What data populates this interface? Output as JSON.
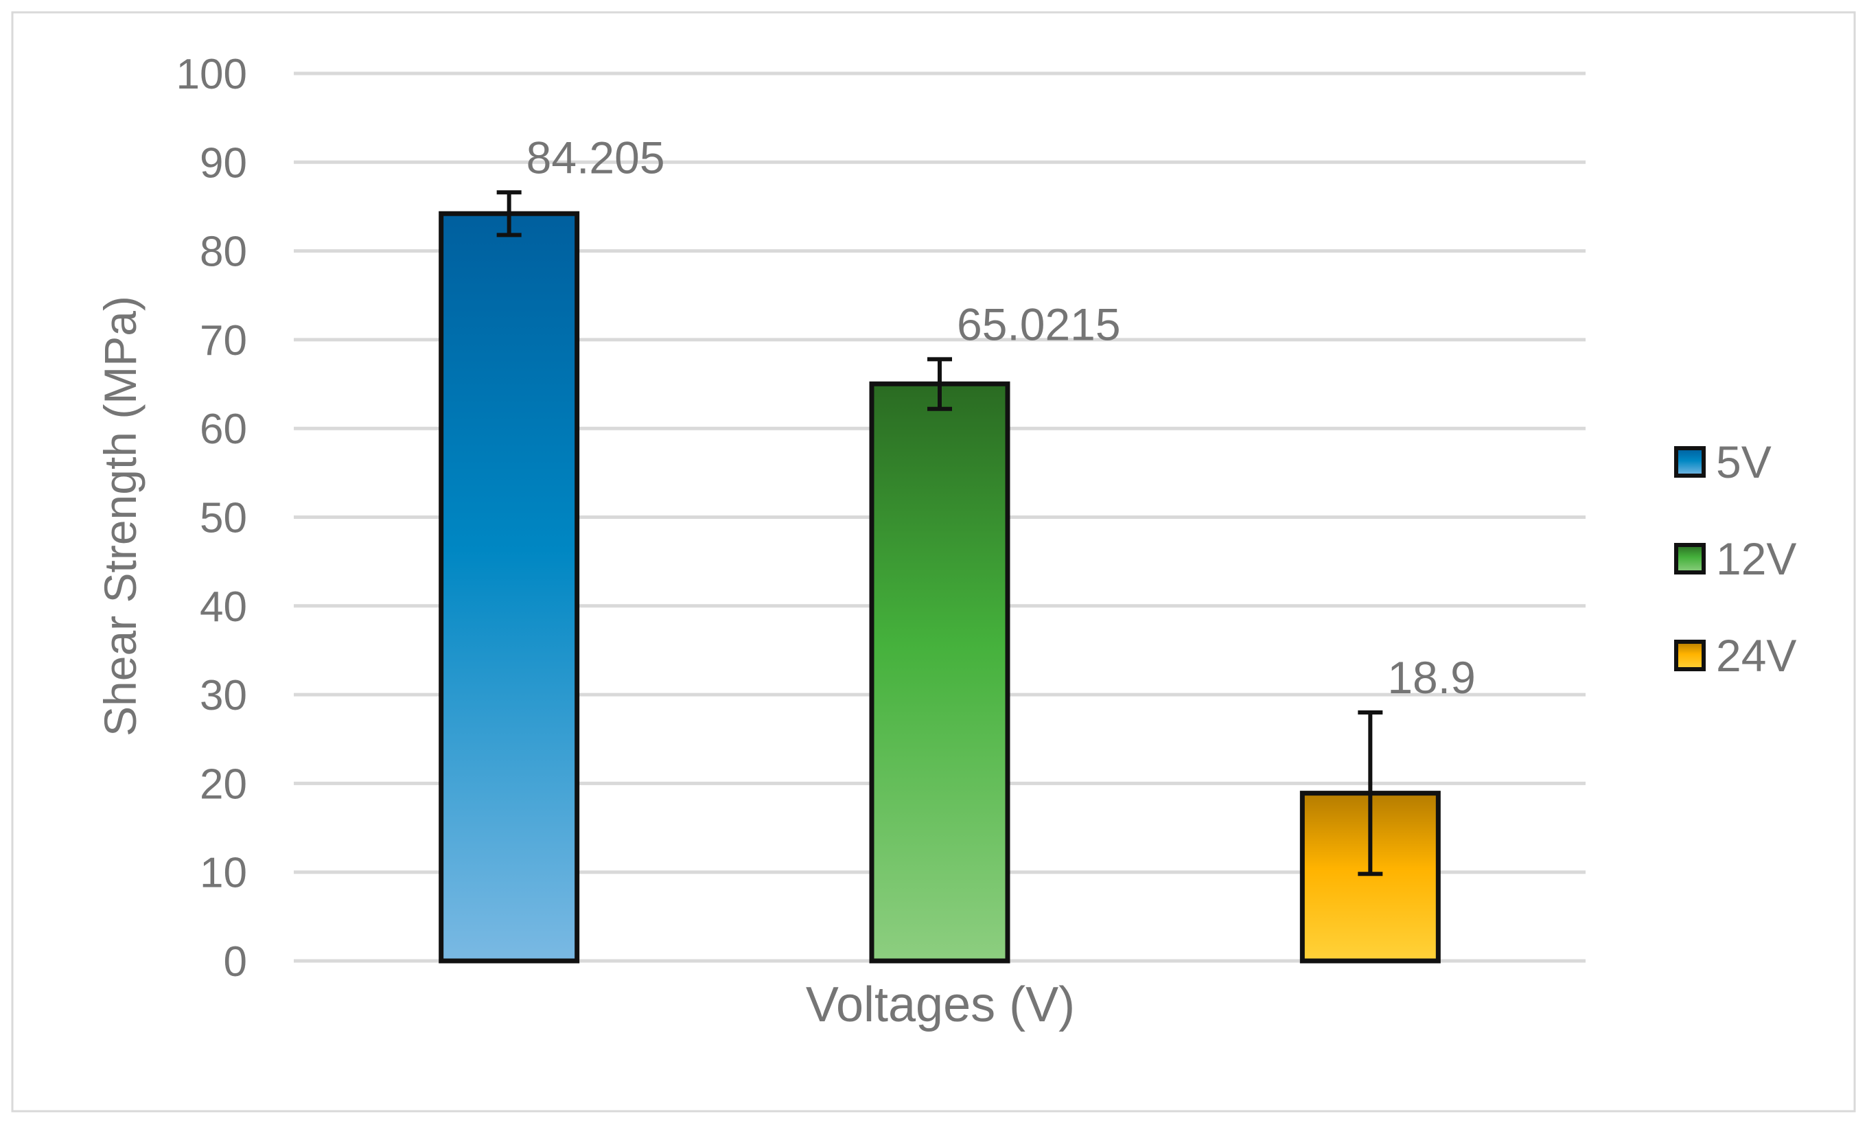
{
  "chart_data": {
    "type": "bar",
    "title": "",
    "xlabel": "Voltages (V)",
    "ylabel": "Shear Strength (MPa)",
    "ylim": [
      0,
      100
    ],
    "yticks": [
      0,
      10,
      20,
      30,
      40,
      50,
      60,
      70,
      80,
      90,
      100
    ],
    "grid": true,
    "legend_position": "right",
    "series": [
      {
        "name": "5V",
        "value": 84.205,
        "label": "84.205",
        "error_low": 81.8,
        "error_high": 86.6,
        "color_dark": "#005f9e",
        "color_mid": "#0087c3",
        "color_light": "#7ab9e3"
      },
      {
        "name": "12V",
        "value": 65.0215,
        "label": "65.0215",
        "error_low": 62.2,
        "error_high": 67.8,
        "color_dark": "#2a6b22",
        "color_mid": "#45b13c",
        "color_light": "#8dce80"
      },
      {
        "name": "24V",
        "value": 18.9,
        "label": "18.9",
        "error_low": 9.8,
        "error_high": 28.0,
        "color_dark": "#b57c00",
        "color_mid": "#ffb300",
        "color_light": "#ffd23a"
      }
    ]
  }
}
